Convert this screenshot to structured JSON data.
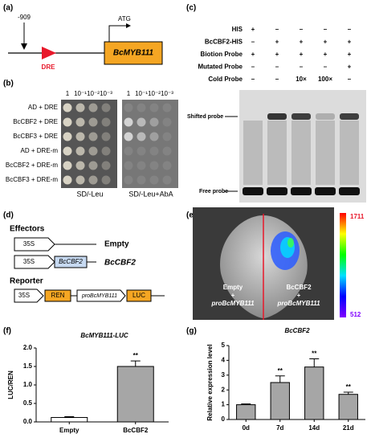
{
  "panel_labels": [
    "(a)",
    "(b)",
    "(c)",
    "(d)",
    "(e)",
    "(f)",
    "(g)"
  ],
  "panel_a": {
    "position": "-909",
    "element": "DRE",
    "gene": "BcMYB111",
    "start": "ATG"
  },
  "panel_b": {
    "dilutions": [
      "1",
      "10⁻¹",
      "10⁻²",
      "10⁻³"
    ],
    "rows": [
      "AD + DRE",
      "BcCBF2 + DRE",
      "BcCBF3 + DRE",
      "AD + DRE-m",
      "BcCBF2 + DRE-m",
      "BcCBF3 + DRE-m"
    ],
    "media": [
      "SD/-Leu",
      "SD/-Leu+AbA"
    ]
  },
  "panel_c": {
    "rows": [
      {
        "label": "HIS",
        "lanes": [
          "+",
          "–",
          "–",
          "–",
          "–"
        ]
      },
      {
        "label": "BcCBF2-HIS",
        "lanes": [
          "–",
          "+",
          "+",
          "+",
          "+"
        ]
      },
      {
        "label": "Biotion Probe",
        "lanes": [
          "+",
          "+",
          "+",
          "+",
          "+"
        ]
      },
      {
        "label": "Mutated Probe",
        "lanes": [
          "–",
          "–",
          "–",
          "–",
          "+"
        ]
      },
      {
        "label": "Cold Probe",
        "lanes": [
          "–",
          "–",
          "10×",
          "100×",
          "–"
        ]
      }
    ],
    "shifted": "Shifted probe",
    "free": "Free probe"
  },
  "panel_d": {
    "effectors": "Effectors",
    "reporter": "Reporter",
    "promoter": "35S",
    "empty": "Empty",
    "tf": "BcCBF2",
    "ren": "REN",
    "pro": "proBcMYB111",
    "luc": "LUC"
  },
  "panel_e": {
    "left": [
      "Empty",
      "+",
      "proBcMYB111"
    ],
    "right": [
      "BcCBF2",
      "+",
      "proBcMYB111"
    ],
    "scale_max": "1711",
    "scale_min": "512"
  },
  "chart_data": [
    {
      "type": "bar",
      "title": "BcMYB111-LUC",
      "ylabel": "LUC/REN",
      "categories": [
        "Empty",
        "BcCBF2"
      ],
      "values": [
        0.12,
        1.5
      ],
      "errors": [
        0.02,
        0.15
      ],
      "significance": [
        null,
        "**"
      ],
      "colors": [
        "#ffffff",
        "#a6a6a6"
      ],
      "ylim": [
        0,
        2
      ],
      "yticks": [
        {
          "value": 0,
          "label": "0.0"
        },
        {
          "value": 0.5,
          "label": "0.5"
        },
        {
          "value": 1,
          "label": "1.0"
        },
        {
          "value": 1.5,
          "label": "1.5"
        },
        {
          "value": 2,
          "label": "2.0"
        }
      ]
    },
    {
      "type": "bar",
      "title": "BcCBF2",
      "ylabel": "Relative expression level",
      "categories": [
        "0d",
        "7d",
        "14d",
        "21d"
      ],
      "values": [
        1.0,
        2.5,
        3.55,
        1.7
      ],
      "errors": [
        0.05,
        0.45,
        0.55,
        0.15
      ],
      "significance": [
        null,
        "**",
        "**",
        "**"
      ],
      "colors": [
        "#a6a6a6",
        "#a6a6a6",
        "#a6a6a6",
        "#a6a6a6"
      ],
      "ylim": [
        0,
        5
      ],
      "yticks": [
        0,
        1,
        2,
        3,
        4,
        5
      ]
    }
  ]
}
